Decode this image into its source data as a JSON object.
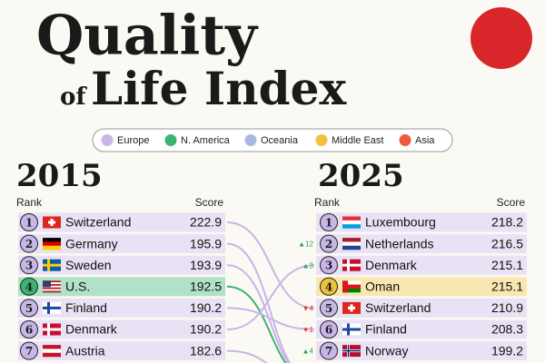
{
  "header": {
    "title_main": "Quality",
    "title_of": "of",
    "title_rest": "Life Index"
  },
  "legend": [
    {
      "label": "Europe",
      "color": "#c7b6e6"
    },
    {
      "label": "N. America",
      "color": "#3cb371"
    },
    {
      "label": "Oceania",
      "color": "#a9b8e0"
    },
    {
      "label": "Middle East",
      "color": "#f0c23c"
    },
    {
      "label": "Asia",
      "color": "#ee5a3c"
    }
  ],
  "tables": [
    {
      "year": "2015",
      "rank_header": "Rank",
      "score_header": "Score",
      "rows": [
        {
          "rank": "1",
          "country": "Switzerland",
          "score": "222.9",
          "region": "Europe"
        },
        {
          "rank": "2",
          "country": "Germany",
          "score": "195.9",
          "region": "Europe"
        },
        {
          "rank": "3",
          "country": "Sweden",
          "score": "193.9",
          "region": "Europe"
        },
        {
          "rank": "4",
          "country": "U.S.",
          "score": "192.5",
          "region": "N. America"
        },
        {
          "rank": "5",
          "country": "Finland",
          "score": "190.2",
          "region": "Europe"
        },
        {
          "rank": "6",
          "country": "Denmark",
          "score": "190.2",
          "region": "Europe"
        },
        {
          "rank": "7",
          "country": "Austria",
          "score": "182.6",
          "region": "Europe"
        }
      ]
    },
    {
      "year": "2025",
      "rank_header": "Rank",
      "score_header": "Score",
      "rows": [
        {
          "rank": "1",
          "country": "Luxembourg",
          "score": "218.2",
          "region": "Europe"
        },
        {
          "rank": "2",
          "country": "Netherlands",
          "score": "216.5",
          "region": "Europe",
          "change": "▲12"
        },
        {
          "rank": "3",
          "country": "Denmark",
          "score": "215.1",
          "region": "Europe",
          "change": "▲3"
        },
        {
          "rank": "4",
          "country": "Oman",
          "score": "215.1",
          "region": "Middle East"
        },
        {
          "rank": "5",
          "country": "Switzerland",
          "score": "210.9",
          "region": "Europe",
          "change": "▼4"
        },
        {
          "rank": "6",
          "country": "Finland",
          "score": "208.3",
          "region": "Europe",
          "change": "▼1"
        },
        {
          "rank": "7",
          "country": "Norway",
          "score": "199.2",
          "region": "Europe",
          "change": "▲4"
        }
      ]
    }
  ]
}
